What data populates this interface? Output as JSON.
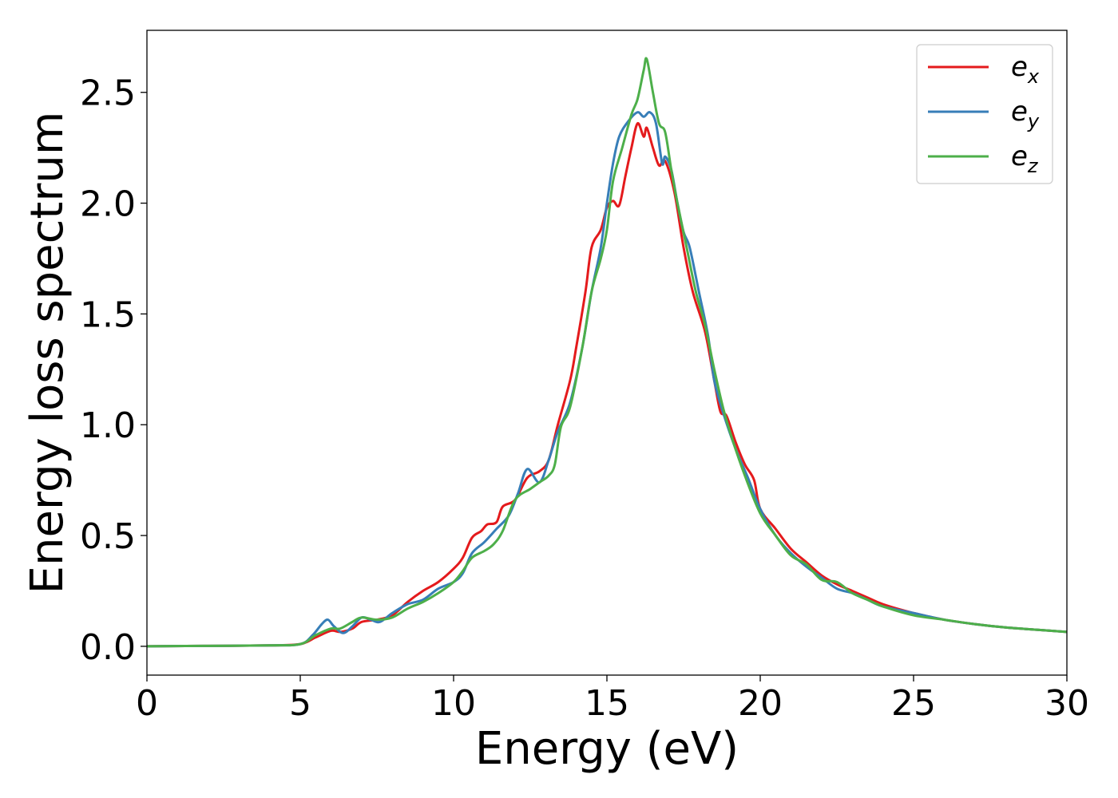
{
  "chart_data": {
    "type": "line",
    "xlabel": "Energy (eV)",
    "ylabel": "Energy loss spectrum",
    "xlim": [
      0,
      30
    ],
    "ylim": [
      -0.13,
      2.78
    ],
    "x_ticks": [
      "0",
      "5",
      "10",
      "15",
      "20",
      "25",
      "30"
    ],
    "y_ticks": [
      "0.0",
      "0.5",
      "1.0",
      "1.5",
      "2.0",
      "2.5"
    ],
    "grid": false,
    "legend_position": "top-right",
    "series": [
      {
        "name": "e_x",
        "legend_base": "e",
        "legend_sub": "x",
        "color": "#e41a1c",
        "points": [
          [
            0,
            0
          ],
          [
            2,
            0.002
          ],
          [
            4,
            0.004
          ],
          [
            5,
            0.01
          ],
          [
            5.5,
            0.04
          ],
          [
            6,
            0.07
          ],
          [
            6.3,
            0.065
          ],
          [
            6.7,
            0.08
          ],
          [
            7,
            0.11
          ],
          [
            7.5,
            0.12
          ],
          [
            8,
            0.14
          ],
          [
            8.5,
            0.2
          ],
          [
            9,
            0.25
          ],
          [
            9.5,
            0.29
          ],
          [
            10,
            0.35
          ],
          [
            10.3,
            0.4
          ],
          [
            10.6,
            0.49
          ],
          [
            10.9,
            0.52
          ],
          [
            11.1,
            0.55
          ],
          [
            11.4,
            0.56
          ],
          [
            11.6,
            0.63
          ],
          [
            12,
            0.66
          ],
          [
            12.4,
            0.76
          ],
          [
            12.8,
            0.79
          ],
          [
            13.1,
            0.84
          ],
          [
            13.4,
            1.0
          ],
          [
            13.8,
            1.2
          ],
          [
            14,
            1.35
          ],
          [
            14.3,
            1.6
          ],
          [
            14.5,
            1.8
          ],
          [
            14.8,
            1.88
          ],
          [
            15,
            1.98
          ],
          [
            15.2,
            2.01
          ],
          [
            15.4,
            1.99
          ],
          [
            15.6,
            2.12
          ],
          [
            15.8,
            2.25
          ],
          [
            16,
            2.36
          ],
          [
            16.2,
            2.3
          ],
          [
            16.3,
            2.34
          ],
          [
            16.5,
            2.25
          ],
          [
            16.7,
            2.17
          ],
          [
            16.9,
            2.19
          ],
          [
            17.2,
            2.05
          ],
          [
            17.5,
            1.8
          ],
          [
            17.8,
            1.6
          ],
          [
            18.2,
            1.42
          ],
          [
            18.5,
            1.2
          ],
          [
            18.7,
            1.06
          ],
          [
            18.9,
            1.04
          ],
          [
            19.2,
            0.92
          ],
          [
            19.5,
            0.82
          ],
          [
            19.8,
            0.75
          ],
          [
            20,
            0.62
          ],
          [
            20.5,
            0.53
          ],
          [
            21,
            0.44
          ],
          [
            21.5,
            0.38
          ],
          [
            22,
            0.32
          ],
          [
            22.5,
            0.28
          ],
          [
            23,
            0.25
          ],
          [
            23.5,
            0.22
          ],
          [
            24,
            0.19
          ],
          [
            25,
            0.15
          ],
          [
            26,
            0.12
          ],
          [
            27,
            0.1
          ],
          [
            28,
            0.085
          ],
          [
            29,
            0.075
          ],
          [
            30,
            0.065
          ]
        ]
      },
      {
        "name": "e_y",
        "legend_base": "e",
        "legend_sub": "y",
        "color": "#377eb8",
        "points": [
          [
            0,
            0
          ],
          [
            2,
            0.002
          ],
          [
            4,
            0.004
          ],
          [
            5,
            0.01
          ],
          [
            5.4,
            0.05
          ],
          [
            5.7,
            0.1
          ],
          [
            5.9,
            0.12
          ],
          [
            6.1,
            0.09
          ],
          [
            6.4,
            0.06
          ],
          [
            6.7,
            0.09
          ],
          [
            7,
            0.13
          ],
          [
            7.3,
            0.12
          ],
          [
            7.6,
            0.11
          ],
          [
            8,
            0.15
          ],
          [
            8.5,
            0.19
          ],
          [
            9,
            0.21
          ],
          [
            9.5,
            0.26
          ],
          [
            10,
            0.29
          ],
          [
            10.3,
            0.33
          ],
          [
            10.6,
            0.42
          ],
          [
            11,
            0.47
          ],
          [
            11.4,
            0.53
          ],
          [
            11.8,
            0.59
          ],
          [
            12.1,
            0.69
          ],
          [
            12.4,
            0.8
          ],
          [
            12.8,
            0.74
          ],
          [
            13.1,
            0.84
          ],
          [
            13.4,
            0.97
          ],
          [
            13.8,
            1.1
          ],
          [
            14.2,
            1.35
          ],
          [
            14.5,
            1.6
          ],
          [
            14.8,
            1.8
          ],
          [
            15,
            2.0
          ],
          [
            15.2,
            2.18
          ],
          [
            15.4,
            2.3
          ],
          [
            15.7,
            2.37
          ],
          [
            16,
            2.41
          ],
          [
            16.2,
            2.39
          ],
          [
            16.4,
            2.41
          ],
          [
            16.6,
            2.36
          ],
          [
            16.8,
            2.18
          ],
          [
            16.9,
            2.21
          ],
          [
            17.1,
            2.15
          ],
          [
            17.3,
            2.0
          ],
          [
            17.5,
            1.87
          ],
          [
            17.7,
            1.8
          ],
          [
            18,
            1.6
          ],
          [
            18.3,
            1.4
          ],
          [
            18.5,
            1.2
          ],
          [
            18.8,
            1.05
          ],
          [
            19.2,
            0.89
          ],
          [
            19.6,
            0.76
          ],
          [
            20,
            0.62
          ],
          [
            20.5,
            0.5
          ],
          [
            21,
            0.42
          ],
          [
            21.5,
            0.36
          ],
          [
            22,
            0.31
          ],
          [
            22.5,
            0.26
          ],
          [
            23,
            0.24
          ],
          [
            23.5,
            0.21
          ],
          [
            24,
            0.18
          ],
          [
            25,
            0.15
          ],
          [
            26,
            0.12
          ],
          [
            27,
            0.1
          ],
          [
            28,
            0.085
          ],
          [
            29,
            0.075
          ],
          [
            30,
            0.065
          ]
        ]
      },
      {
        "name": "e_z",
        "legend_base": "e",
        "legend_sub": "z",
        "color": "#4daf4a",
        "points": [
          [
            0,
            0
          ],
          [
            2,
            0.002
          ],
          [
            4,
            0.004
          ],
          [
            5,
            0.01
          ],
          [
            5.5,
            0.05
          ],
          [
            6,
            0.08
          ],
          [
            6.3,
            0.08
          ],
          [
            6.7,
            0.11
          ],
          [
            7,
            0.13
          ],
          [
            7.5,
            0.12
          ],
          [
            8,
            0.13
          ],
          [
            8.5,
            0.17
          ],
          [
            9,
            0.2
          ],
          [
            9.5,
            0.24
          ],
          [
            10,
            0.29
          ],
          [
            10.3,
            0.34
          ],
          [
            10.6,
            0.4
          ],
          [
            11,
            0.43
          ],
          [
            11.3,
            0.46
          ],
          [
            11.6,
            0.52
          ],
          [
            12,
            0.66
          ],
          [
            12.5,
            0.71
          ],
          [
            12.8,
            0.74
          ],
          [
            13.1,
            0.77
          ],
          [
            13.3,
            0.82
          ],
          [
            13.5,
            0.99
          ],
          [
            13.8,
            1.08
          ],
          [
            14.2,
            1.35
          ],
          [
            14.5,
            1.6
          ],
          [
            14.8,
            1.75
          ],
          [
            15,
            1.88
          ],
          [
            15.2,
            2.1
          ],
          [
            15.5,
            2.25
          ],
          [
            15.8,
            2.4
          ],
          [
            16,
            2.47
          ],
          [
            16.2,
            2.6
          ],
          [
            16.3,
            2.65
          ],
          [
            16.5,
            2.5
          ],
          [
            16.7,
            2.36
          ],
          [
            16.9,
            2.32
          ],
          [
            17.1,
            2.15
          ],
          [
            17.3,
            2.0
          ],
          [
            17.6,
            1.8
          ],
          [
            17.9,
            1.6
          ],
          [
            18.2,
            1.45
          ],
          [
            18.5,
            1.25
          ],
          [
            18.8,
            1.07
          ],
          [
            19.1,
            0.93
          ],
          [
            19.5,
            0.77
          ],
          [
            20,
            0.6
          ],
          [
            20.5,
            0.5
          ],
          [
            21,
            0.41
          ],
          [
            21.5,
            0.37
          ],
          [
            22,
            0.3
          ],
          [
            22.5,
            0.29
          ],
          [
            23,
            0.24
          ],
          [
            23.5,
            0.21
          ],
          [
            24,
            0.18
          ],
          [
            25,
            0.14
          ],
          [
            26,
            0.12
          ],
          [
            27,
            0.1
          ],
          [
            28,
            0.085
          ],
          [
            29,
            0.075
          ],
          [
            30,
            0.065
          ]
        ]
      }
    ]
  }
}
